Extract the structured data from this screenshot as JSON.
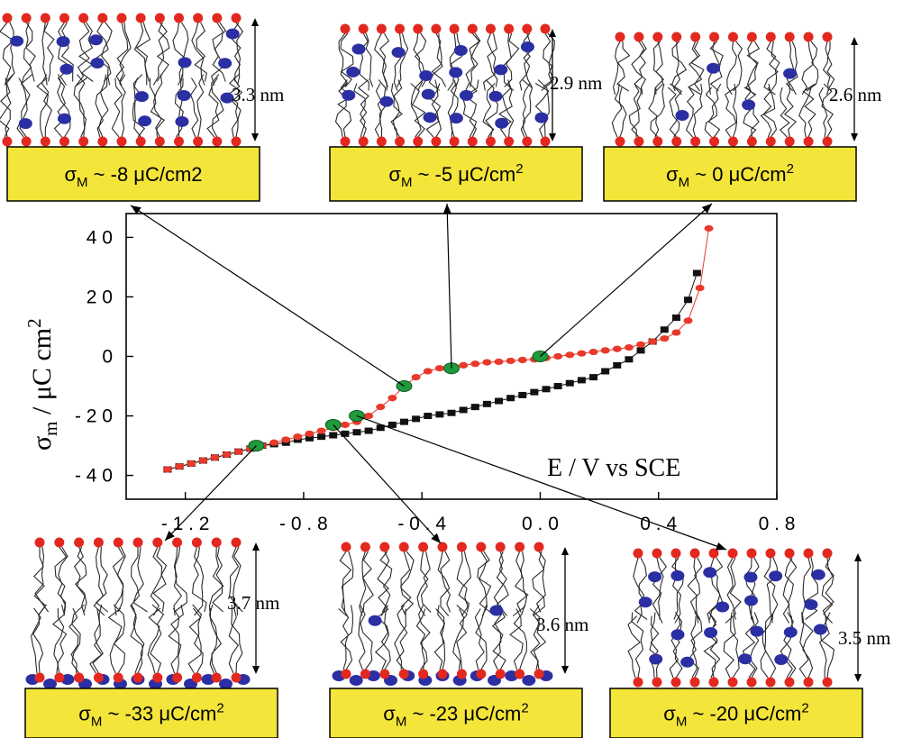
{
  "colors": {
    "box_fill": "#f4e53a",
    "head": "#e2281f",
    "ion": "#2b2fa3",
    "red_series": "#e8392b",
    "black_series": "#111111",
    "highlight": "#1f9a3c"
  },
  "panels": [
    {
      "sigma_prefix": "σ",
      "sub": "M",
      "value": " ~ -8 μC/cm2",
      "sup": "",
      "thickness": "3.3 nm",
      "ions": "dispersed"
    },
    {
      "sigma_prefix": "σ",
      "sub": "M",
      "value": " ~ -5 μC/cm",
      "sup": "2",
      "thickness": "2.9 nm",
      "ions": "dispersed"
    },
    {
      "sigma_prefix": "σ",
      "sub": "M",
      "value": " ~ 0 μC/cm",
      "sup": "2",
      "thickness": "2.6 nm",
      "ions": "few"
    },
    {
      "sigma_prefix": "σ",
      "sub": "M",
      "value": " ~ -33 μC/cm",
      "sup": "2",
      "thickness": "3.7 nm",
      "ions": "bottom-layer"
    },
    {
      "sigma_prefix": "σ",
      "sub": "M",
      "value": " ~ -23 μC/cm",
      "sup": "2",
      "thickness": "3.6 nm",
      "ions": "bottom-layer-few"
    },
    {
      "sigma_prefix": "σ",
      "sub": "M",
      "value": " ~ -20 μC/cm",
      "sup": "2",
      "thickness": "3.5 nm",
      "ions": "dispersed"
    }
  ],
  "chart_data": {
    "type": "scatter",
    "xlabel": "E / V vs SCE",
    "ylabel_main": "σ",
    "ylabel_sub": "m",
    "ylabel_rest": " / μC cm",
    "ylabel_sup": "2",
    "xlim": [
      -1.4,
      0.8
    ],
    "ylim": [
      -48,
      48
    ],
    "x_ticks": [
      {
        "value": -1.2,
        "label": "- 1 . 2"
      },
      {
        "value": -0.8,
        "label": "- 0 . 8"
      },
      {
        "value": -0.4,
        "label": "- 0 . 4"
      },
      {
        "value": 0.0,
        "label": "0 . 0"
      },
      {
        "value": 0.4,
        "label": "0 . 4"
      },
      {
        "value": 0.8,
        "label": "0 . 8"
      }
    ],
    "y_ticks": [
      {
        "value": 40,
        "label": "4 0"
      },
      {
        "value": 20,
        "label": "2 0"
      },
      {
        "value": 0,
        "label": "0"
      },
      {
        "value": -20,
        "label": "- 2 0"
      },
      {
        "value": -40,
        "label": "- 4 0"
      }
    ],
    "series": [
      {
        "marker": "ellipse",
        "x": [
          -1.26,
          -1.22,
          -1.18,
          -1.14,
          -1.1,
          -1.06,
          -1.02,
          -0.98,
          -0.94,
          -0.9,
          -0.86,
          -0.82,
          -0.78,
          -0.74,
          -0.7,
          -0.66,
          -0.62,
          -0.58,
          -0.54,
          -0.5,
          -0.46,
          -0.42,
          -0.38,
          -0.34,
          -0.3,
          -0.26,
          -0.22,
          -0.18,
          -0.14,
          -0.1,
          -0.06,
          -0.02,
          0.02,
          0.06,
          0.1,
          0.14,
          0.18,
          0.22,
          0.26,
          0.3,
          0.34,
          0.38,
          0.42,
          0.46,
          0.5,
          0.54,
          0.57
        ],
        "y": [
          -38,
          -37,
          -36,
          -35,
          -34,
          -33,
          -32,
          -31,
          -30,
          -29,
          -28,
          -27,
          -26,
          -25,
          -24,
          -23,
          -22,
          -20,
          -17,
          -14,
          -10,
          -7,
          -5,
          -4,
          -3.5,
          -3,
          -2.5,
          -2,
          -1.8,
          -1.5,
          -1.2,
          -1,
          -0.5,
          0,
          0.5,
          1,
          1.5,
          2,
          2.5,
          3,
          4,
          5,
          6,
          8,
          12,
          23,
          43
        ]
      },
      {
        "marker": "square",
        "x": [
          -1.26,
          -1.22,
          -1.18,
          -1.14,
          -1.1,
          -1.06,
          -1.02,
          -0.98,
          -0.94,
          -0.9,
          -0.86,
          -0.82,
          -0.78,
          -0.74,
          -0.7,
          -0.66,
          -0.62,
          -0.58,
          -0.54,
          -0.5,
          -0.46,
          -0.42,
          -0.38,
          -0.34,
          -0.3,
          -0.26,
          -0.22,
          -0.18,
          -0.14,
          -0.1,
          -0.06,
          -0.02,
          0.02,
          0.06,
          0.1,
          0.14,
          0.18,
          0.22,
          0.26,
          0.3,
          0.34,
          0.38,
          0.42,
          0.46,
          0.5,
          0.53
        ],
        "y": [
          -38,
          -37,
          -36,
          -35,
          -34,
          -33,
          -32,
          -31,
          -30,
          -29.5,
          -29,
          -28,
          -27.5,
          -27,
          -26.5,
          -26,
          -25.5,
          -25,
          -24,
          -23,
          -22,
          -21,
          -20,
          -19.5,
          -19,
          -18,
          -17,
          -16,
          -15,
          -14,
          -13,
          -12,
          -11,
          -10,
          -9,
          -8,
          -7,
          -5,
          -3,
          -1,
          2,
          5,
          9,
          13,
          19,
          28
        ]
      }
    ],
    "highlighted_points": [
      {
        "x": -0.46,
        "y": -10
      },
      {
        "x": -0.3,
        "y": -4
      },
      {
        "x": 0.0,
        "y": 0
      },
      {
        "x": -0.96,
        "y": -30
      },
      {
        "x": -0.7,
        "y": -23
      },
      {
        "x": -0.62,
        "y": -20
      }
    ]
  }
}
